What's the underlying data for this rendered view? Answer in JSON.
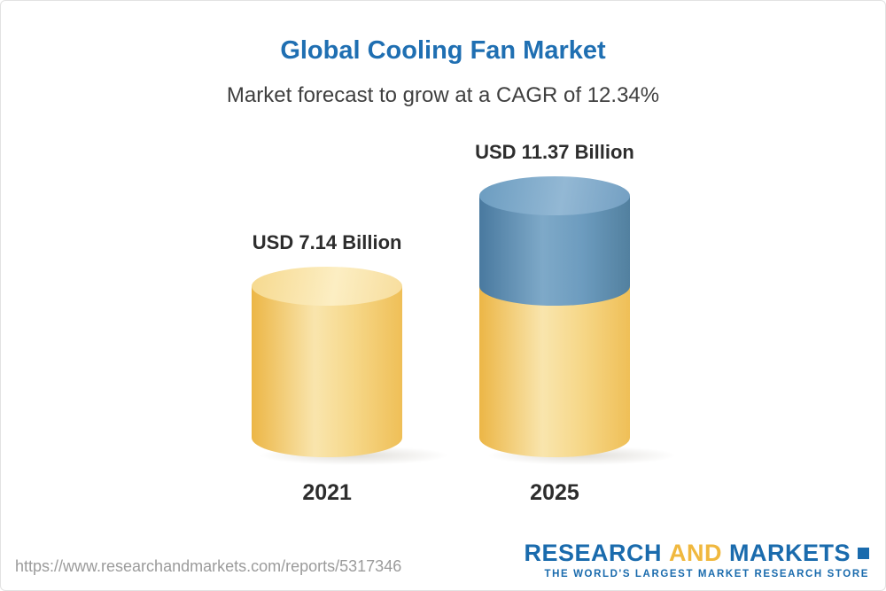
{
  "chart_data": {
    "type": "bar",
    "title": "Global Cooling Fan Market",
    "subtitle": "Market forecast to grow at a CAGR of 12.34%",
    "categories": [
      "2021",
      "2025"
    ],
    "values": [
      7.14,
      11.37
    ],
    "unit": "USD Billion",
    "value_labels": [
      "USD 7.14 Billion",
      "USD 11.37 Billion"
    ],
    "cagr_percent": 12.34,
    "colors": {
      "base_segment": "#f5c45f",
      "growth_segment": "#5e8cb4",
      "title_blue": "#1f6fb2"
    },
    "layout": {
      "bar_style": "3d-cylinder",
      "note": "2025 bar shows the 2021 base value in gold with the incremental growth to 11.37 in blue stacked on top",
      "legend": "none",
      "grid": "off"
    }
  },
  "footer": {
    "url": "https://www.researchandmarkets.com/reports/5317346",
    "logo": {
      "part1": "RESEARCH",
      "part2": "AND",
      "part3": "MARKETS",
      "tagline": "THE WORLD'S LARGEST MARKET RESEARCH STORE"
    }
  }
}
